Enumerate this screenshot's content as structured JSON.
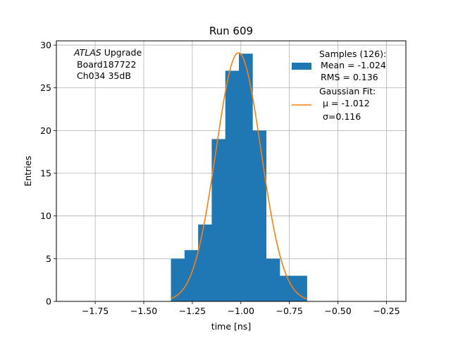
{
  "chart_data": {
    "type": "bar",
    "title": "Run 609",
    "xlabel": "time [ns]",
    "ylabel": "Entries",
    "xlim": [
      -1.95,
      -0.15
    ],
    "ylim": [
      0,
      30.5
    ],
    "xticks": [
      -1.75,
      -1.5,
      -1.25,
      -1.0,
      -0.75,
      -0.5,
      -0.25
    ],
    "xtick_labels": [
      "−1.75",
      "−1.50",
      "−1.25",
      "−1.00",
      "−0.75",
      "−0.50",
      "−0.25"
    ],
    "yticks": [
      0,
      5,
      10,
      15,
      20,
      25,
      30
    ],
    "ytick_labels": [
      "0",
      "5",
      "10",
      "15",
      "20",
      "25",
      "30"
    ],
    "grid": true,
    "legend_position": "top-right",
    "annotation": {
      "line1_italic": "ATLAS",
      "line1_rest": " Upgrade",
      "line2": "Board187722",
      "line3": "Ch034 35dB"
    },
    "histogram": {
      "name_lines": [
        "Samples (126):",
        "Mean = -1.024",
        "RMS = 0.136"
      ],
      "color": "#1f77b4",
      "bin_edges": [
        -1.36,
        -1.29,
        -1.22,
        -1.15,
        -1.08,
        -1.01,
        -0.94,
        -0.87,
        -0.8,
        -0.73,
        -0.66
      ],
      "counts": [
        5,
        6,
        9,
        19,
        27,
        29,
        20,
        5,
        3,
        3
      ]
    },
    "fit": {
      "name_lines": [
        "Gaussian Fit:",
        "μ = -1.012",
        "σ=0.116"
      ],
      "color": "#ff7f0e",
      "mu": -1.012,
      "sigma": 0.116,
      "amplitude": 29.1,
      "x_range": [
        -1.36,
        -0.66
      ]
    }
  }
}
